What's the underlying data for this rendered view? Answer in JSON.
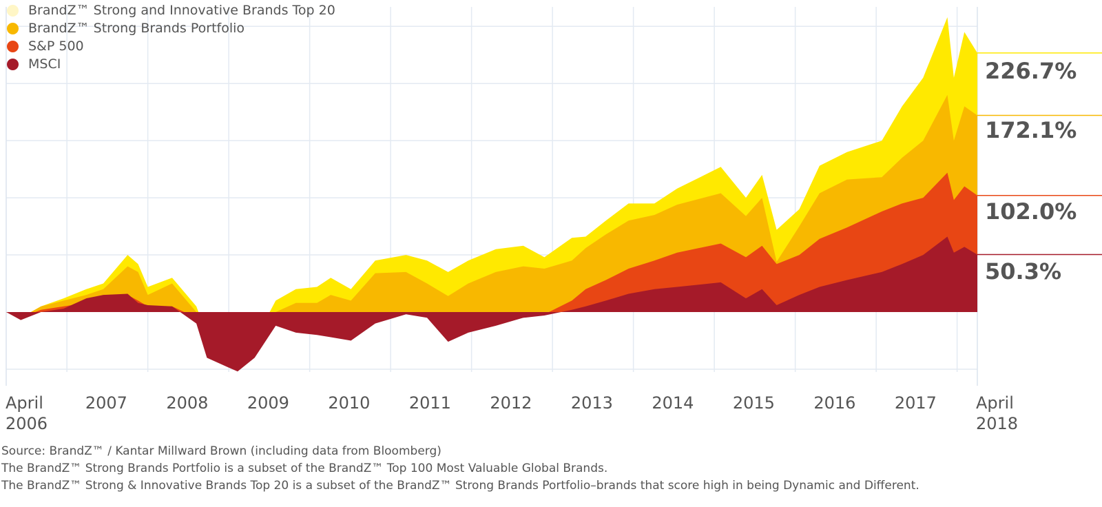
{
  "chart_data": {
    "type": "area",
    "title": "",
    "xlabel": "",
    "ylabel": "",
    "x_unit": "decimal year",
    "xlim": [
      2006.25,
      2018.25
    ],
    "ylim": [
      -50,
      255
    ],
    "y_gridlines": [
      -50,
      0,
      50,
      100,
      150,
      200,
      250
    ],
    "grid": true,
    "legend_position": "top-left",
    "x": [
      2006.25,
      2006.43,
      2006.68,
      2006.96,
      2007.24,
      2007.45,
      2007.75,
      2007.88,
      2008.0,
      2008.3,
      2008.6,
      2008.73,
      2008.98,
      2009.11,
      2009.32,
      2009.58,
      2009.83,
      2010.09,
      2010.26,
      2010.51,
      2010.81,
      2011.19,
      2011.45,
      2011.71,
      2011.96,
      2012.3,
      2012.64,
      2012.9,
      2013.24,
      2013.41,
      2013.66,
      2013.94,
      2014.26,
      2014.54,
      2015.08,
      2015.39,
      2015.59,
      2015.77,
      2016.05,
      2016.3,
      2016.64,
      2017.07,
      2017.32,
      2017.58,
      2017.88,
      2017.96,
      2018.09,
      2018.25
    ],
    "series": [
      {
        "name": "BrandZ™ Strong and Innovative Brands Top 20",
        "color": "#FFE900",
        "legend_color": "#FFF6C6",
        "end_label": "226.7%",
        "values": [
          0,
          -5,
          5,
          12,
          20,
          25,
          50,
          42,
          22,
          30,
          5,
          -20,
          -30,
          -38,
          -25,
          10,
          20,
          22,
          30,
          20,
          45,
          50,
          45,
          35,
          45,
          55,
          58,
          48,
          65,
          66,
          80,
          95,
          95,
          108,
          127,
          100,
          120,
          72,
          90,
          128,
          140,
          150,
          180,
          205,
          258,
          205,
          245,
          226.7
        ]
      },
      {
        "name": "BrandZ™ Strong Brands Portfolio",
        "color": "#F8B800",
        "legend_color": "#F8B800",
        "end_label": "172.1%",
        "values": [
          0,
          -5,
          5,
          10,
          15,
          20,
          40,
          35,
          15,
          25,
          0,
          -25,
          -30,
          -35,
          -22,
          0,
          8,
          8,
          15,
          10,
          34,
          35,
          25,
          14,
          25,
          35,
          40,
          38,
          45,
          56,
          68,
          80,
          85,
          94,
          104,
          84,
          100,
          44,
          75,
          104,
          116,
          118,
          135,
          150,
          190,
          150,
          180,
          172.1
        ]
      },
      {
        "name": "S&P 500",
        "color": "#E84614",
        "legend_color": "#E84614",
        "end_label": "102.0%",
        "values": [
          0,
          -5,
          2,
          5,
          8,
          10,
          15,
          10,
          5,
          5,
          -5,
          -30,
          -38,
          -40,
          -30,
          -10,
          -12,
          -10,
          -15,
          -18,
          -8,
          0,
          -2,
          -20,
          -15,
          -10,
          -5,
          -2,
          10,
          20,
          28,
          38,
          45,
          52,
          60,
          48,
          58,
          42,
          50,
          64,
          74,
          88,
          95,
          100,
          122,
          98,
          110,
          102.0
        ]
      },
      {
        "name": "MSCI",
        "color": "#A51A29",
        "legend_color": "#A51A29",
        "end_label": "50.3%",
        "values": [
          0,
          -7,
          0,
          3,
          12,
          15,
          16,
          8,
          6,
          5,
          -10,
          -40,
          -48,
          -52,
          -40,
          -12,
          -18,
          -20,
          -22,
          -25,
          -10,
          -2,
          -5,
          -26,
          -18,
          -12,
          -5,
          -3,
          2,
          5,
          10,
          16,
          20,
          22,
          26,
          12,
          20,
          6,
          15,
          22,
          28,
          35,
          42,
          50,
          66,
          52,
          57,
          50.3
        ]
      }
    ],
    "x_tick_labels": [
      {
        "label": "April\n2006",
        "at": 2006.25
      },
      {
        "label": "2007",
        "at": 2007.5
      },
      {
        "label": "2008",
        "at": 2008.5
      },
      {
        "label": "2009",
        "at": 2009.5
      },
      {
        "label": "2010",
        "at": 2010.5
      },
      {
        "label": "2011",
        "at": 2011.5
      },
      {
        "label": "2012",
        "at": 2012.5
      },
      {
        "label": "2013",
        "at": 2013.5
      },
      {
        "label": "2014",
        "at": 2014.5
      },
      {
        "label": "2015",
        "at": 2015.5
      },
      {
        "label": "2016",
        "at": 2016.5
      },
      {
        "label": "2017",
        "at": 2017.5
      },
      {
        "label": "April\n2018",
        "at": 2018.25
      }
    ]
  },
  "footnotes": [
    "Source: BrandZ™ / Kantar Millward Brown (including data from Bloomberg)",
    "The BrandZ™ Strong Brands Portfolio is a subset of the BrandZ™ Top 100 Most Valuable Global Brands.",
    "The BrandZ™ Strong & Innovative Brands Top 20 is a subset of the BrandZ™ Strong Brands Portfolio–brands that score high in being Dynamic and Different."
  ]
}
